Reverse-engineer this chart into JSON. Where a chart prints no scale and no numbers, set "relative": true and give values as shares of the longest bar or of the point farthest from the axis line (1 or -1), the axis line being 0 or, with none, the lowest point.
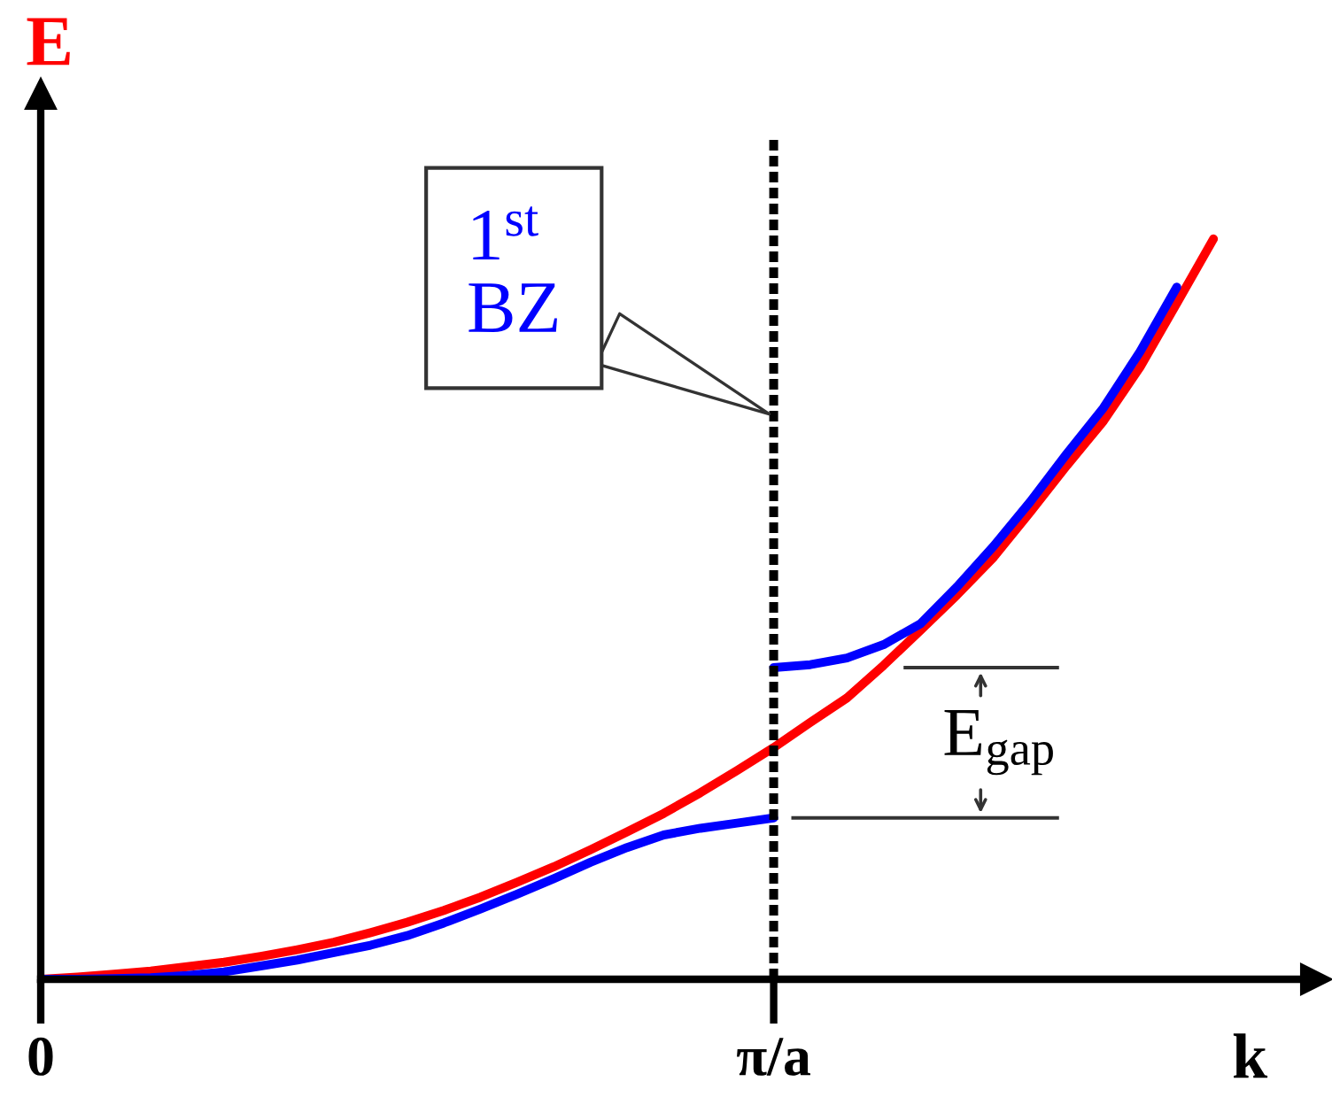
{
  "chart_data": {
    "type": "line",
    "relative": true,
    "xlabel": "k",
    "ylabel": "E",
    "tick_labels": "x",
    "categories": [
      "0",
      null,
      null,
      null,
      null,
      null,
      null,
      null,
      null,
      null,
      null,
      null,
      null,
      null,
      null,
      null,
      null,
      null,
      null,
      null,
      "π/a",
      null,
      null,
      null,
      null,
      null,
      null,
      null,
      null,
      null,
      null,
      null,
      null,
      null,
      null
    ],
    "series": [
      {
        "color": "#ff0000",
        "values": [
          0,
          0.003,
          0.007,
          0.011,
          0.017,
          0.023,
          0.031,
          0.04,
          0.05,
          0.063,
          0.077,
          0.093,
          0.111,
          0.131,
          0.152,
          0.175,
          0.199,
          0.224,
          0.252,
          0.282,
          0.313,
          0.347,
          0.38,
          0.424,
          0.471,
          0.519,
          0.57,
          0.631,
          0.694,
          0.754,
          0.827,
          0.913,
          1.0,
          null,
          null
        ]
      },
      {
        "color": "#0000ff",
        "values": [
          0,
          0,
          0.001,
          0.002,
          0.005,
          0.01,
          0.018,
          0.026,
          0.036,
          0.046,
          0.059,
          0.076,
          0.095,
          0.115,
          0.136,
          0.158,
          0.178,
          0.195,
          0.204,
          0.211,
          0.218,
          null,
          null,
          null,
          null,
          null,
          null,
          null,
          null,
          null,
          null,
          null,
          null,
          null,
          null
        ]
      },
      {
        "color": "#0000ff",
        "values": [
          null,
          null,
          null,
          null,
          null,
          null,
          null,
          null,
          null,
          null,
          null,
          null,
          null,
          null,
          null,
          null,
          null,
          null,
          null,
          null,
          0.421,
          0.425,
          0.434,
          0.452,
          0.48,
          0.53,
          0.585,
          0.645,
          0.71,
          0.772,
          0.848,
          0.935,
          null,
          null,
          null
        ]
      }
    ],
    "ref_lines": [
      {
        "axis": "x",
        "value": "π/a",
        "color": "#000000",
        "line_style": "dashed",
        "label": "1$^{st}$\nBZ"
      }
    ],
    "annotations": [
      "E$_{gap}$"
    ]
  }
}
